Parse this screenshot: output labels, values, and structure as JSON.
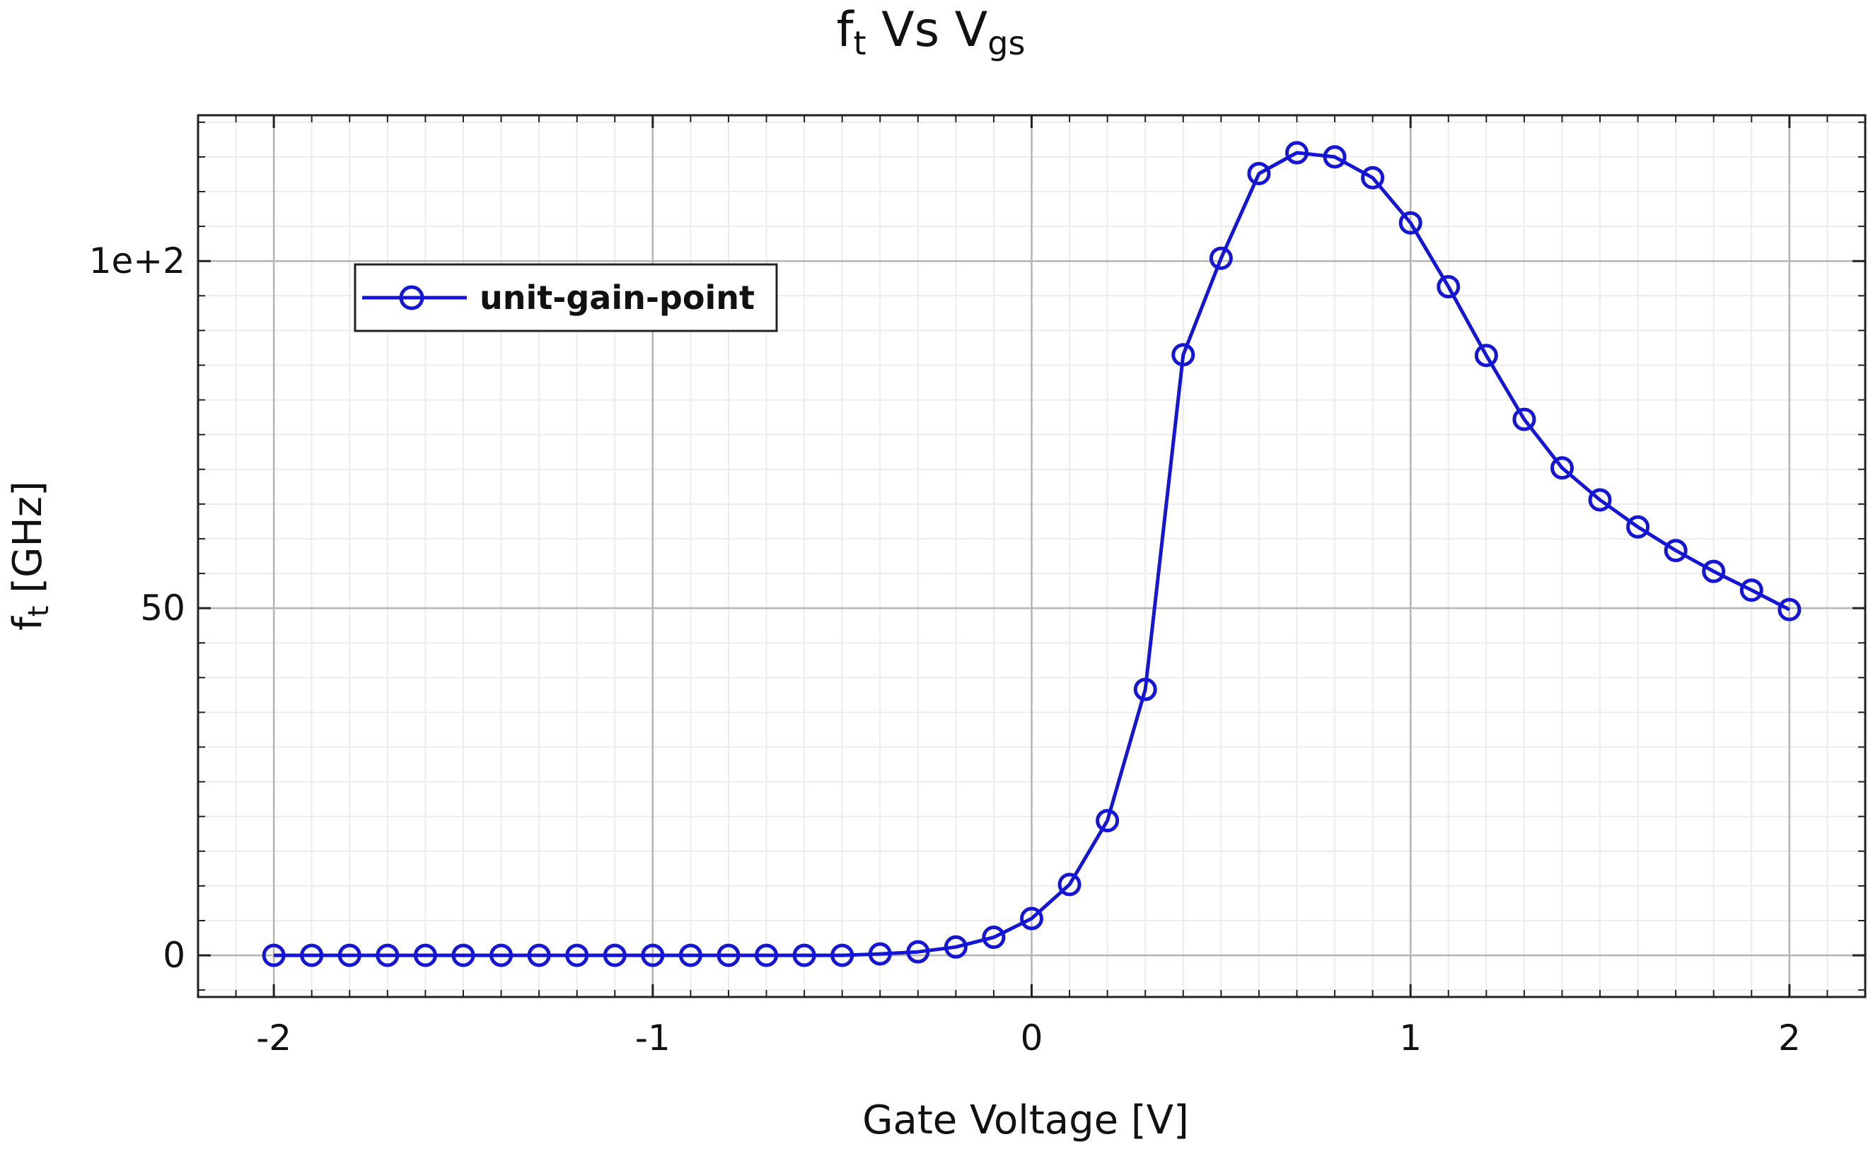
{
  "chart_data": {
    "type": "line",
    "title": {
      "main": "f",
      "main_sub": "t",
      "mid": " Vs V",
      "end_sub": "gs"
    },
    "xlabel": "Gate Voltage [V]",
    "ylabel": {
      "main": "f",
      "sub": "t",
      "rest": " [GHz]"
    },
    "xlim": [
      -2.2,
      2.2
    ],
    "ylim": [
      -6,
      121
    ],
    "x_ticks": [
      {
        "value": -2,
        "label": "-2"
      },
      {
        "value": -1,
        "label": "-1"
      },
      {
        "value": 0,
        "label": "0"
      },
      {
        "value": 1,
        "label": "1"
      },
      {
        "value": 2,
        "label": "2"
      }
    ],
    "y_ticks": [
      {
        "value": 0,
        "label": "0"
      },
      {
        "value": 50,
        "label": "50"
      },
      {
        "value": 100,
        "label": "1e+2"
      }
    ],
    "grid": true,
    "legend_position": "top-left",
    "series": [
      {
        "name": "unit-gain-point",
        "color": "#1515d6",
        "marker": "circle",
        "x": [
          -2.0,
          -1.9,
          -1.8,
          -1.7,
          -1.6,
          -1.5,
          -1.4,
          -1.3,
          -1.2,
          -1.1,
          -1.0,
          -0.9,
          -0.8,
          -0.7,
          -0.6,
          -0.5,
          -0.4,
          -0.3,
          -0.2,
          -0.1,
          0.0,
          0.1,
          0.2,
          0.3,
          0.4,
          0.5,
          0.6,
          0.7,
          0.8,
          0.9,
          1.0,
          1.1,
          1.2,
          1.3,
          1.4,
          1.5,
          1.6,
          1.7,
          1.8,
          1.9,
          2.0
        ],
        "y": [
          0,
          0,
          0,
          0,
          0,
          0,
          0,
          0,
          0,
          0,
          0,
          0,
          0,
          0,
          0,
          0,
          0.2,
          0.5,
          1.2,
          2.6,
          5.3,
          10.2,
          19.4,
          38.3,
          86.5,
          100.4,
          112.6,
          115.6,
          115.0,
          112.0,
          105.5,
          96.3,
          86.4,
          77.2,
          70.2,
          65.6,
          61.7,
          58.3,
          55.3,
          52.6,
          49.8
        ]
      }
    ]
  }
}
